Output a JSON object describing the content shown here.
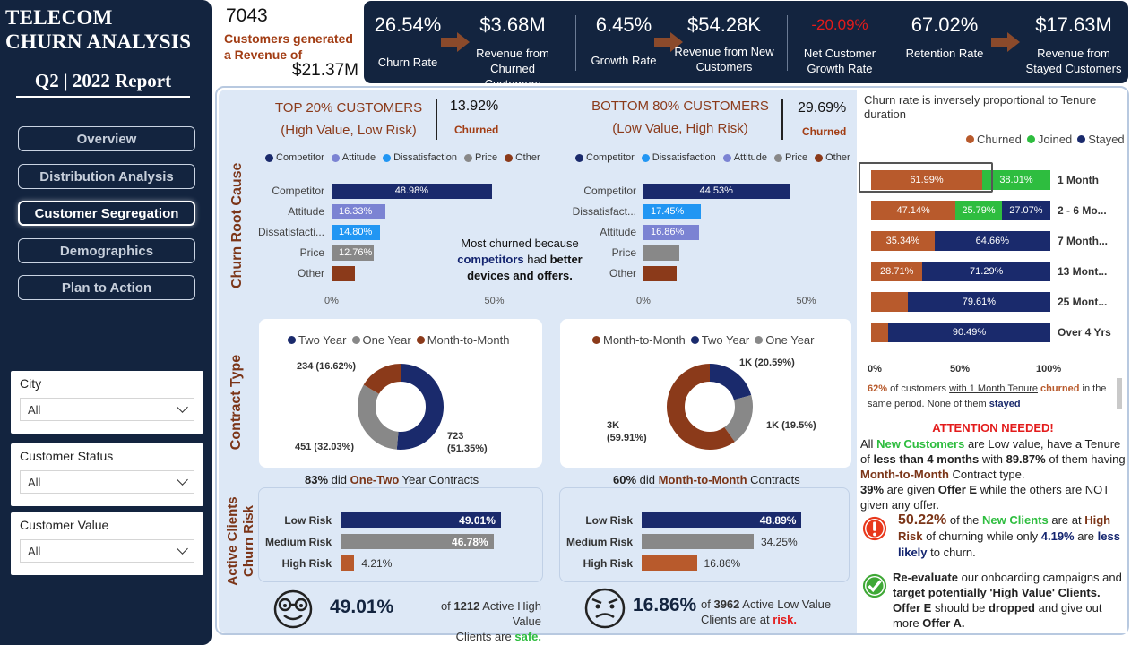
{
  "sidebar": {
    "brand_line1": "TELECOM",
    "brand_line2": "CHURN ANALYSIS",
    "report": "Q2 | 2022 Report",
    "nav": [
      "Overview",
      "Distribution Analysis",
      "Customer Segregation",
      "Demographics",
      "Plan to Action"
    ],
    "active_nav": "Customer Segregation",
    "filters": [
      {
        "label": "City",
        "value": "All"
      },
      {
        "label": "Customer Status",
        "value": "All"
      },
      {
        "label": "Customer Value",
        "value": "All"
      }
    ]
  },
  "summary": {
    "count": "7043",
    "text": "Customers generated a Revenue of",
    "revenue": "$21.37M"
  },
  "kpis": [
    {
      "value": "26.54%",
      "label": "Churn Rate"
    },
    {
      "value": "$3.68M",
      "label": "Revenue from Churned Customers"
    },
    {
      "value": "6.45%",
      "label": "Growth Rate"
    },
    {
      "value": "$54.28K",
      "label": "Revenue from New Customers"
    },
    {
      "value": "-20.09%",
      "label": "Net Customer Growth Rate"
    },
    {
      "value": "67.02%",
      "label": "Retention Rate"
    },
    {
      "value": "$17.63M",
      "label": "Revenue from Stayed Customers"
    }
  ],
  "colors": {
    "navy": "#13243f",
    "bar_navy": "#1a2a6c",
    "brown": "#8b3a1a",
    "orange": "#b85a2c",
    "lavender": "#7b83d3",
    "lightblue": "#2196f3",
    "gray": "#888888",
    "green": "#2ebd3f",
    "red": "#e31b1b"
  },
  "segments": {
    "top": {
      "title": "TOP 20% CUSTOMERS",
      "subtitle": "(High Value, Low Risk)",
      "pct": "13.92%",
      "churned": "Churned"
    },
    "bottom": {
      "title": "BOTTOM 80% CUSTOMERS",
      "subtitle": "(Low Value, High Risk)",
      "pct": "29.69%",
      "churned": "Churned"
    }
  },
  "sections": {
    "churn_cause": "Churn Root Cause",
    "contract": "Contract Type",
    "active": "Active Clients Churn Risk"
  },
  "cause_top": {
    "legend": [
      "Competitor",
      "Attitude",
      "Dissatisfaction",
      "Price",
      "Other"
    ],
    "legend_colors": [
      "#1a2a6c",
      "#7b83d3",
      "#2196f3",
      "#888888",
      "#8b3a1a"
    ],
    "categories": [
      "Competitor",
      "Attitude",
      "Dissatisfacti...",
      "Price",
      "Other"
    ],
    "values": [
      48.98,
      16.33,
      14.8,
      12.76,
      7.13
    ],
    "labels": [
      "48.98%",
      "16.33%",
      "14.80%",
      "12.76%",
      ""
    ],
    "colors": [
      "#1a2a6c",
      "#7b83d3",
      "#2196f3",
      "#888888",
      "#8b3a1a"
    ],
    "axis": [
      "0%",
      "50%"
    ]
  },
  "cause_bottom": {
    "legend": [
      "Competitor",
      "Dissatisfaction",
      "Attitude",
      "Price",
      "Other"
    ],
    "legend_colors": [
      "#1a2a6c",
      "#2196f3",
      "#7b83d3",
      "#888888",
      "#8b3a1a"
    ],
    "categories": [
      "Competitor",
      "Dissatisfact...",
      "Attitude",
      "Price",
      "Other"
    ],
    "values": [
      44.53,
      17.45,
      16.86,
      11.0,
      10.16
    ],
    "labels": [
      "44.53%",
      "17.45%",
      "16.86%",
      "",
      ""
    ],
    "colors": [
      "#1a2a6c",
      "#2196f3",
      "#7b83d3",
      "#888888",
      "#8b3a1a"
    ],
    "axis": [
      "0%",
      "50%"
    ]
  },
  "cause_note": {
    "line1": "Most churned because",
    "b1": "competitors",
    "mid": "had",
    "b2": "better",
    "line3": "devices and offers."
  },
  "contract_top": {
    "legend": [
      "Two Year",
      "One Year",
      "Month-to-Month"
    ],
    "legend_colors": [
      "#1a2a6c",
      "#888888",
      "#8b3a1a"
    ],
    "slices": [
      {
        "name": "Two Year",
        "value": 51.35,
        "color": "#1a2a6c",
        "label": "723 (51.35%)"
      },
      {
        "name": "One Year",
        "value": 32.03,
        "color": "#888888",
        "label": "451 (32.03%)"
      },
      {
        "name": "Month-to-Month",
        "value": 16.62,
        "color": "#8b3a1a",
        "label": "234 (16.62%)"
      }
    ],
    "note_pct": "83%",
    "note_mid": "did",
    "note_b": "One-Two",
    "note_end": "Year Contracts"
  },
  "contract_bottom": {
    "legend": [
      "Month-to-Month",
      "Two Year",
      "One Year"
    ],
    "legend_colors": [
      "#8b3a1a",
      "#1a2a6c",
      "#888888"
    ],
    "slices": [
      {
        "name": "Two Year",
        "value": 20.59,
        "color": "#1a2a6c",
        "label": "1K (20.59%)"
      },
      {
        "name": "One Year",
        "value": 19.5,
        "color": "#888888",
        "label": "1K (19.5%)"
      },
      {
        "name": "Month-to-Month",
        "value": 59.91,
        "color": "#8b3a1a",
        "label": "3K (59.91%)"
      }
    ],
    "note_pct": "60%",
    "note_mid": "did",
    "note_b": "Month-to-Month",
    "note_end": "Contracts"
  },
  "risk_top": {
    "categories": [
      "Low Risk",
      "Medium Risk",
      "High Risk"
    ],
    "values": [
      49.01,
      46.78,
      4.21
    ],
    "labels": [
      "49.01%",
      "46.78%",
      "4.21%"
    ],
    "colors": [
      "#1a2a6c",
      "#888888",
      "#b85a2c"
    ]
  },
  "risk_bottom": {
    "categories": [
      "Low Risk",
      "Medium Risk",
      "High Risk"
    ],
    "values": [
      48.89,
      34.25,
      16.86
    ],
    "labels": [
      "48.89%",
      "34.25%",
      "16.86%"
    ],
    "colors": [
      "#1a2a6c",
      "#888888",
      "#b85a2c"
    ]
  },
  "stat_top": {
    "pct": "49.01%",
    "of": "of",
    "num": "1212",
    "text1": "Active High Value",
    "text2": "Clients are",
    "emph": "safe."
  },
  "stat_bottom": {
    "pct": "16.86%",
    "of": "of",
    "num": "3962",
    "text1": "Active Low Value",
    "text2": "Clients are at",
    "emph": "risk."
  },
  "tenure": {
    "title": "Churn rate is inversely proportional to Tenure duration",
    "legend": [
      "Churned",
      "Joined",
      "Stayed"
    ],
    "legend_colors": [
      "#b85a2c",
      "#2ebd3f",
      "#1a2a6c"
    ],
    "rows": [
      {
        "label": "1 Month",
        "churned": 61.99,
        "joined": 38.01,
        "stayed": 0,
        "labels": [
          "61.99%",
          "38.01%",
          ""
        ]
      },
      {
        "label": "2 - 6 Mo...",
        "churned": 47.14,
        "joined": 25.79,
        "stayed": 27.07,
        "labels": [
          "47.14%",
          "25.79%",
          "27.07%"
        ]
      },
      {
        "label": "7 Month...",
        "churned": 35.34,
        "joined": 0,
        "stayed": 64.66,
        "labels": [
          "35.34%",
          "",
          "64.66%"
        ]
      },
      {
        "label": "13 Mont...",
        "churned": 28.71,
        "joined": 0,
        "stayed": 71.29,
        "labels": [
          "28.71%",
          "",
          "71.29%"
        ]
      },
      {
        "label": "25 Mont...",
        "churned": 20.39,
        "joined": 0,
        "stayed": 79.61,
        "labels": [
          "",
          "",
          "79.61%"
        ]
      },
      {
        "label": "Over 4 Yrs",
        "churned": 9.51,
        "joined": 0,
        "stayed": 90.49,
        "labels": [
          "",
          "",
          "90.49%"
        ]
      }
    ],
    "axis": [
      "0%",
      "50%",
      "100%"
    ],
    "note_pct": "62%",
    "note_t1": "of customers",
    "note_u": "with 1 Month Tenure",
    "note_b": "churned",
    "note_t2": "in the same period. None of them",
    "note_s": "stayed"
  },
  "attention": {
    "title": "ATTENTION NEEDED!",
    "p1": "All",
    "p1_g": "New Customers",
    "p2": "are Low value, have a Tenure of",
    "p2_b": "less than 4 months",
    "p3": "with",
    "p3_b": "89.87%",
    "p4": "of them having",
    "p4_b": "Month-to-Month",
    "p5": "Contract type.",
    "p6_b": "39%",
    "p6": "are given",
    "p6_b2": "Offer E",
    "p7": "while the others are NOT given any offer.",
    "a1_pct": "50.22%",
    "a1_t": "of the",
    "a1_g": "New Clients",
    "a1_t2": "are at",
    "a1_b": "High Risk",
    "a1_t3": "of churning while only",
    "a1_b2": "4.19%",
    "a1_t4": "are",
    "a1_b3": "less likely",
    "a1_t5": "to churn.",
    "a2_b": "Re-evaluate",
    "a2_t": "our onboarding campaigns and",
    "a2_b2": "target potentially 'High Value' Clients.",
    "a2_b3": "Offer E",
    "a2_t2": "should be",
    "a2_b4": "dropped",
    "a2_t3": "and give out more",
    "a2_b5": "Offer A."
  }
}
